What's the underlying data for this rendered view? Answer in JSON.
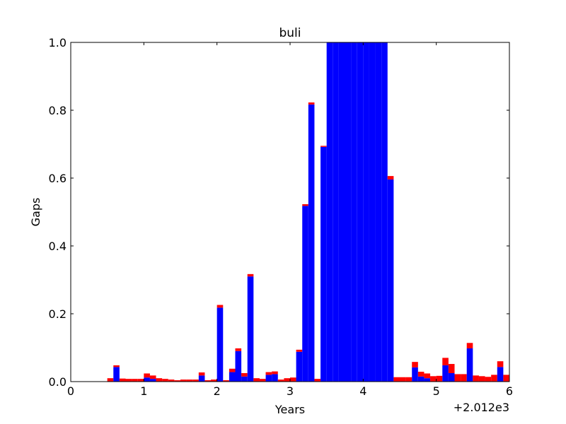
{
  "chart_data": {
    "type": "stacked_bar",
    "title": "buli",
    "x_label": "Years",
    "y_label": "Gaps",
    "x_offset_label": "+2.012e3",
    "x": [
      2012.5,
      2012.5833,
      2012.6667,
      2012.75,
      2012.8333,
      2012.9167,
      2013,
      2013.0833,
      2013.1667,
      2013.25,
      2013.3333,
      2013.4167,
      2013.5,
      2013.5833,
      2013.6667,
      2013.75,
      2013.8333,
      2013.9167,
      2014,
      2014.0833,
      2014.1667,
      2014.25,
      2014.3333,
      2014.4167,
      2014.5,
      2014.5833,
      2014.6667,
      2014.75,
      2014.8333,
      2014.9167,
      2015,
      2015.0833,
      2015.1667,
      2015.25,
      2015.3333,
      2015.4167,
      2015.5,
      2015.5833,
      2015.6667,
      2015.75,
      2015.8333,
      2015.9167,
      2016,
      2016.0833,
      2016.1667,
      2016.25,
      2016.3333,
      2016.4167,
      2016.5,
      2016.5833,
      2016.6667,
      2016.75,
      2016.8333,
      2016.9167,
      2017,
      2017.0833,
      2017.1667,
      2017.25,
      2017.3333,
      2017.4167,
      2017.5,
      2017.5833,
      2017.6667,
      2017.75,
      2017.8333,
      2017.9167
    ],
    "series": [
      {
        "color": "#0000ff",
        "values": [
          0,
          0.043,
          0,
          0,
          0,
          0,
          0.012,
          0.008,
          0,
          0,
          0,
          0,
          0,
          0,
          0,
          0.018,
          0,
          0,
          0.218,
          0,
          0.028,
          0.09,
          0.015,
          0.31,
          0,
          0,
          0.02,
          0.022,
          0,
          0,
          0,
          0.088,
          0.518,
          0.817,
          0,
          0.692,
          1,
          1,
          1,
          1,
          1,
          1,
          1,
          1,
          1,
          1,
          0.596,
          0,
          0,
          0,
          0.042,
          0.015,
          0.01,
          0,
          0,
          0.048,
          0.025,
          0,
          0,
          0.098,
          0,
          0,
          0,
          0,
          0.043,
          0
        ]
      },
      {
        "color": "#ff0000",
        "values": [
          0.01,
          0.005,
          0.009,
          0.008,
          0.008,
          0.008,
          0.012,
          0.01,
          0.01,
          0.008,
          0.006,
          0.004,
          0.006,
          0.006,
          0.006,
          0.009,
          0.004,
          0.006,
          0.008,
          0.004,
          0.01,
          0.008,
          0.01,
          0.007,
          0.01,
          0.008,
          0.008,
          0.008,
          0.006,
          0.01,
          0.012,
          0.006,
          0.005,
          0.006,
          0.008,
          0.003,
          0,
          0,
          0,
          0,
          0,
          0,
          0,
          0,
          0,
          0,
          0.01,
          0.013,
          0.013,
          0.013,
          0.016,
          0.014,
          0.014,
          0.016,
          0.017,
          0.022,
          0.027,
          0.022,
          0.022,
          0.016,
          0.018,
          0.016,
          0.014,
          0.02,
          0.017,
          0.02
        ]
      }
    ],
    "xlim": [
      2012,
      2018
    ],
    "xticks": [
      {
        "value": 2012,
        "label": "0"
      },
      {
        "value": 2013,
        "label": "1"
      },
      {
        "value": 2014,
        "label": "2"
      },
      {
        "value": 2015,
        "label": "3"
      },
      {
        "value": 2016,
        "label": "4"
      },
      {
        "value": 2017,
        "label": "5"
      },
      {
        "value": 2018,
        "label": "6"
      }
    ],
    "ylim": [
      0,
      1
    ],
    "yticks": [
      {
        "value": 0,
        "label": "0.0"
      },
      0.2,
      0.4,
      0.6,
      0.8,
      {
        "value": 1,
        "label": "1.0"
      }
    ]
  }
}
